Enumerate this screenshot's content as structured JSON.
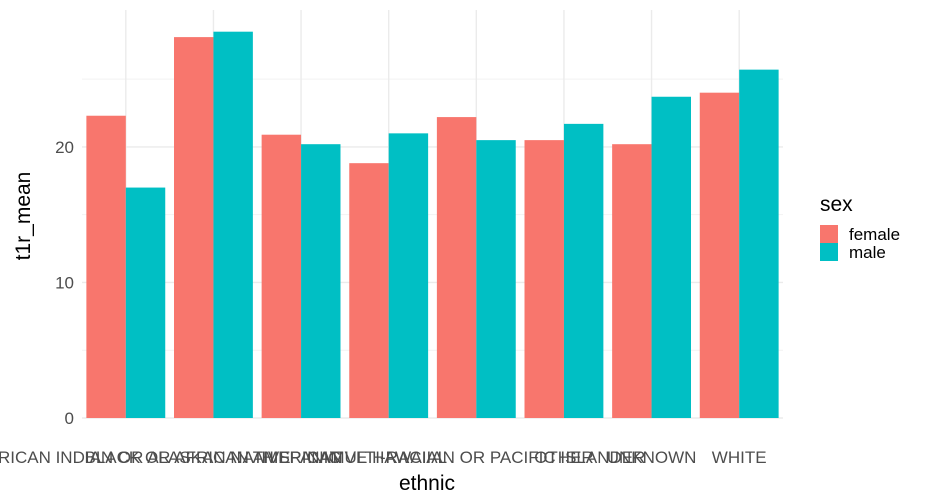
{
  "chart_data": {
    "type": "bar",
    "xlabel": "ethnic",
    "ylabel": "t1r_mean",
    "categories": [
      "AMERICAN INDIAN OR ALASKAN NATIVE",
      "BLACK OR AFRICAN AMERICAN",
      "HISPANIC",
      "MULTI-RACIAL",
      "NATIVE HAWAIIAN OR PACIFIC ISLANDER",
      "OTHER",
      "UNKNOWN",
      "WHITE"
    ],
    "series": [
      {
        "name": "female",
        "color": "#F8766D",
        "values": [
          22.3,
          28.1,
          20.9,
          18.8,
          22.2,
          20.5,
          20.2,
          24.0
        ]
      },
      {
        "name": "male",
        "color": "#00BFC4",
        "values": [
          17.0,
          28.5,
          20.2,
          21.0,
          20.5,
          21.7,
          23.7,
          25.7
        ]
      }
    ],
    "ylim": [
      0,
      30.1
    ],
    "yticks": [
      0,
      10,
      20
    ],
    "grid": true,
    "legend": {
      "title": "sex",
      "position": "right"
    }
  }
}
